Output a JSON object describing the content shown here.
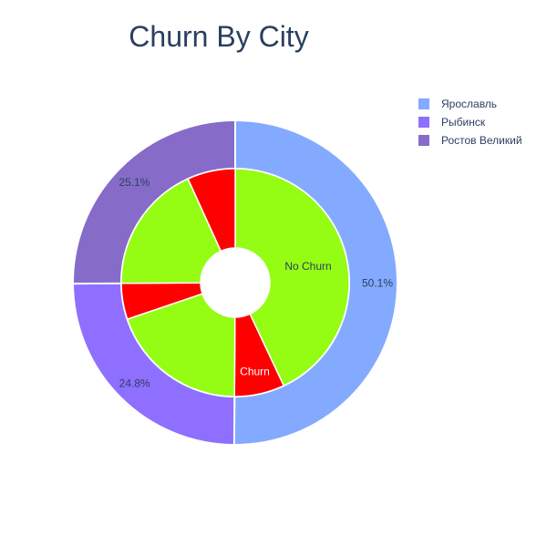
{
  "chart_data": {
    "type": "pie",
    "title": "Churn By City",
    "outer": {
      "labels": [
        "Ярославль",
        "Рыбинск",
        "Ростов Великий"
      ],
      "values": [
        50.1,
        24.8,
        25.1
      ],
      "percent_labels": [
        "50.1%",
        "24.8%",
        "25.1%"
      ],
      "colors": [
        "#83aaff",
        "#8f6fff",
        "#866cc8"
      ]
    },
    "inner": {
      "labels": [
        "No Churn",
        "Churn",
        "No Churn",
        "Churn",
        "No Churn",
        "Churn"
      ],
      "values": [
        43.0,
        7.1,
        19.7,
        5.1,
        18.3,
        6.8
      ],
      "colors": [
        "#95fc14",
        "#ff0000",
        "#95fc14",
        "#ff0000",
        "#95fc14",
        "#ff0000"
      ],
      "shown_labels": [
        "No Churn",
        "Churn",
        "",
        "",
        "",
        ""
      ]
    },
    "legend_placement": "top-right"
  }
}
